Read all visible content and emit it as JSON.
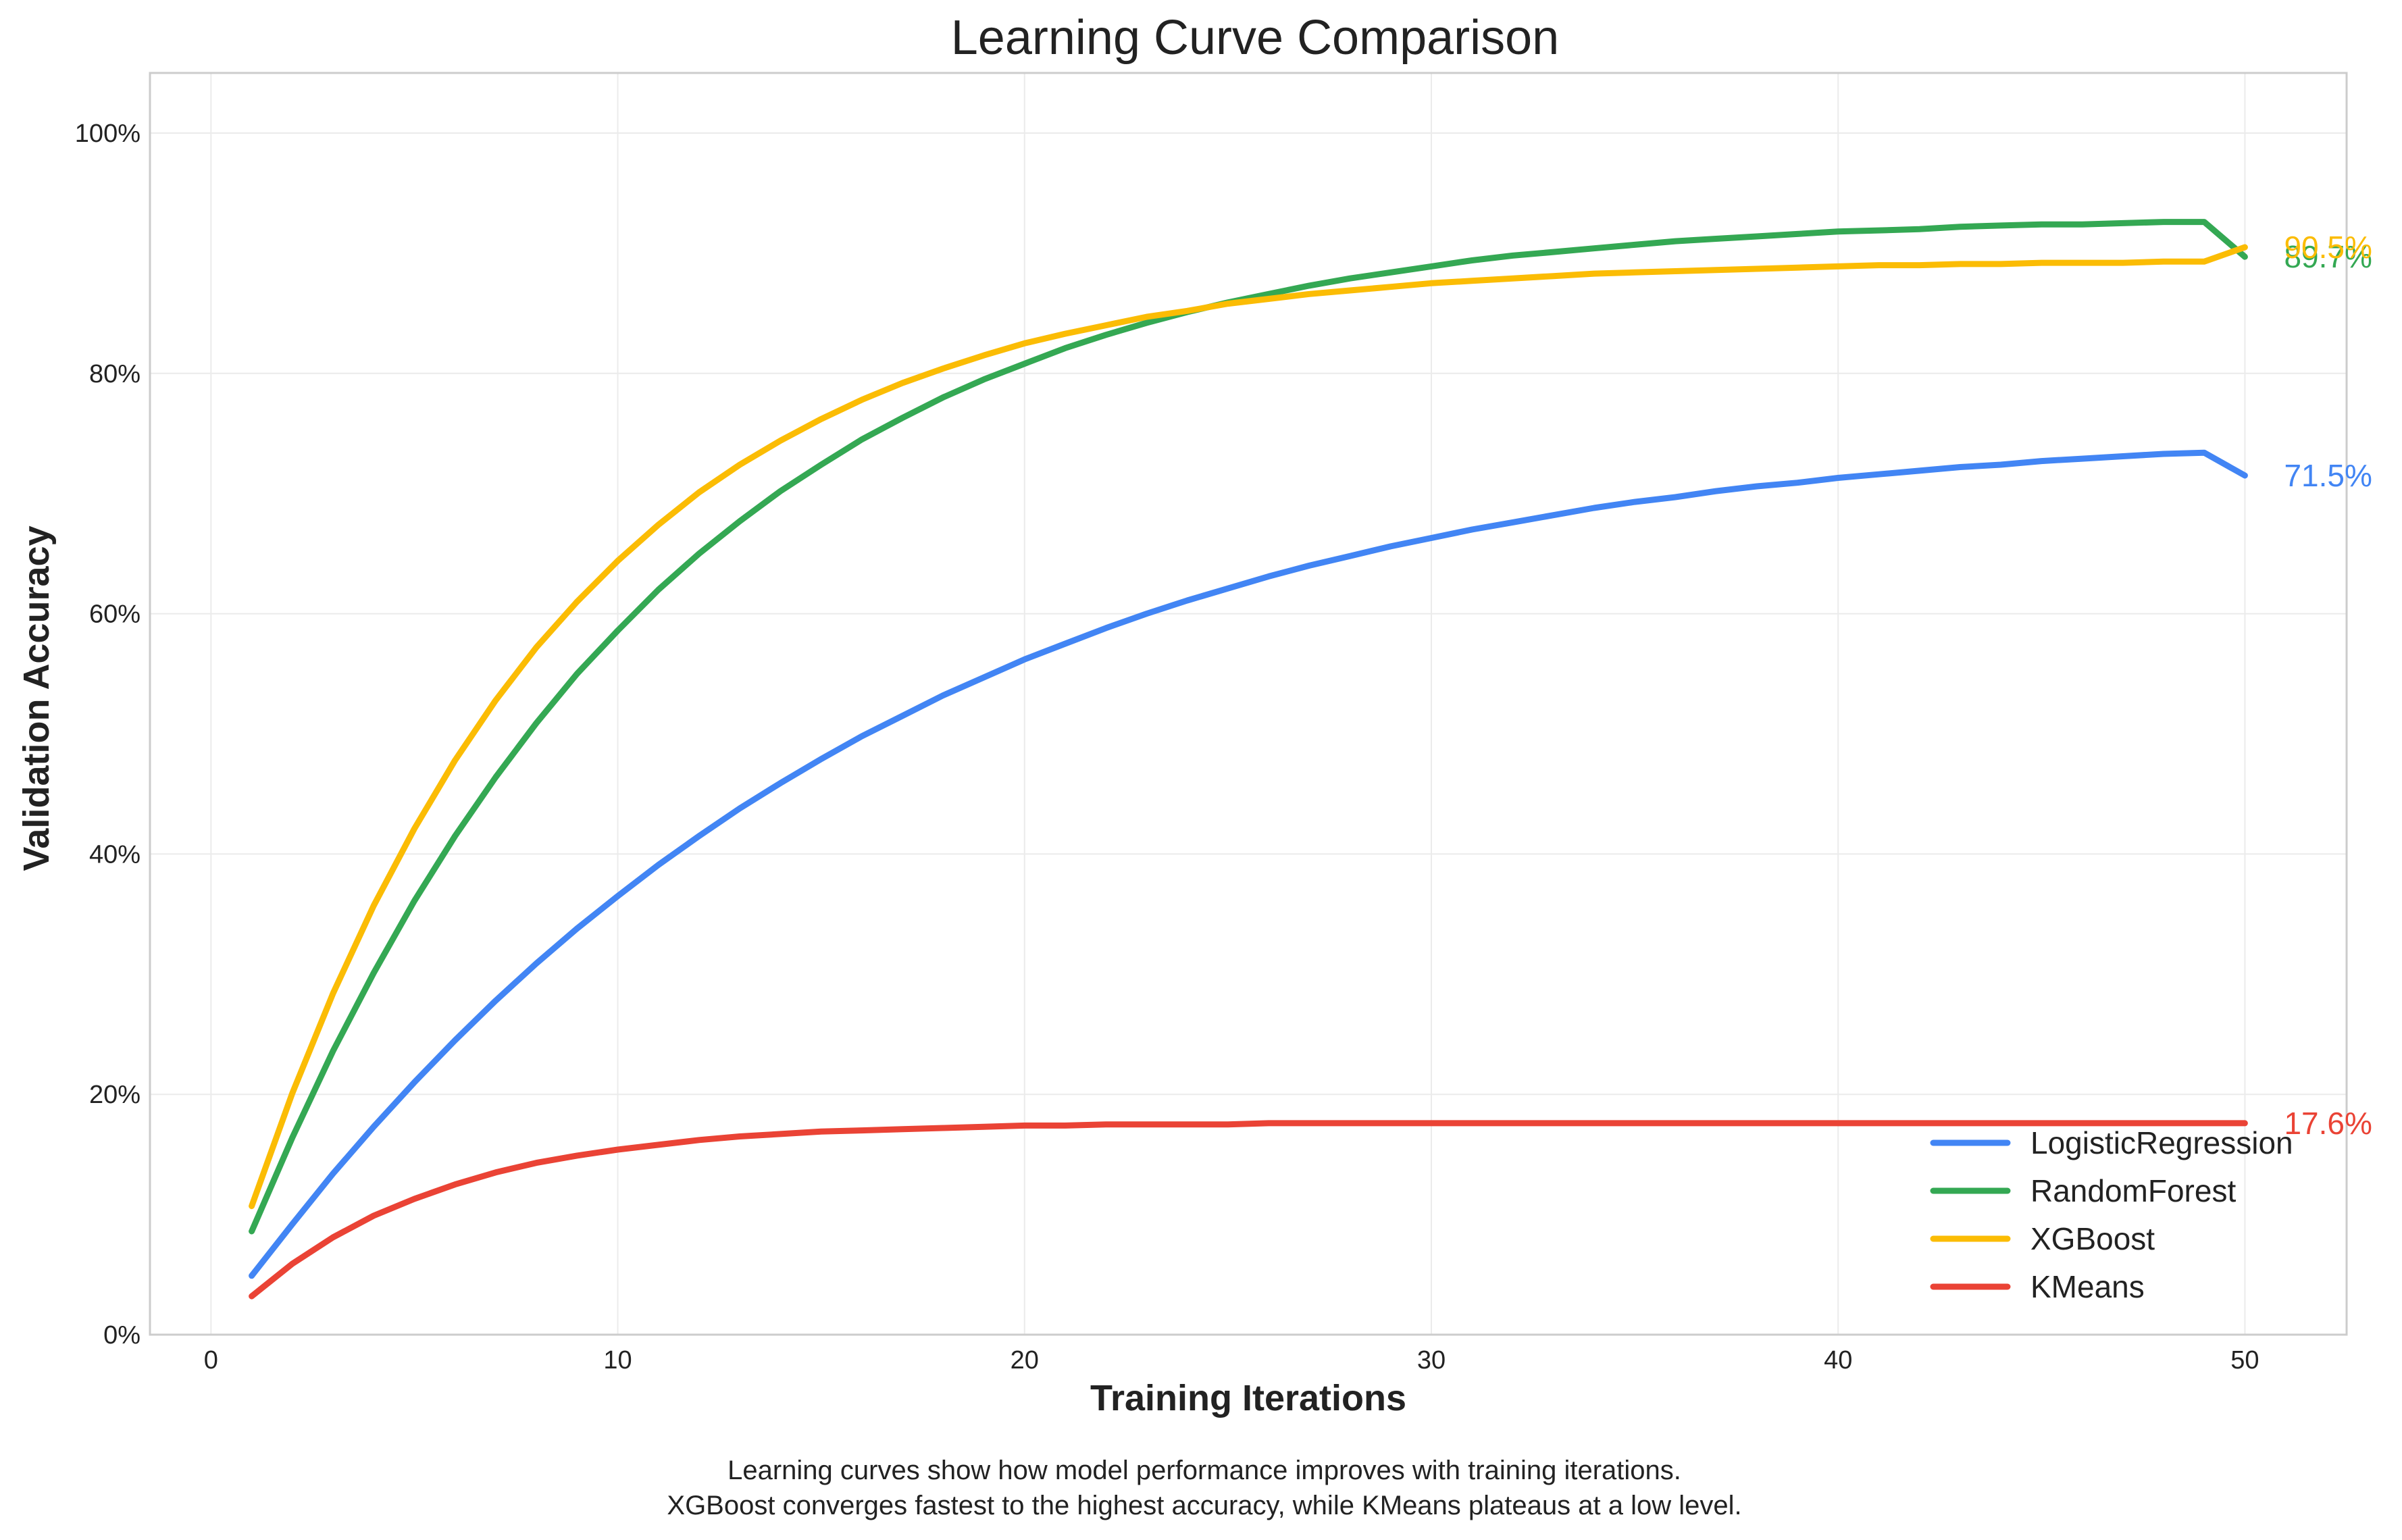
{
  "chart_data": {
    "type": "line",
    "title": "Learning Curve Comparison",
    "xlabel": "Training Iterations",
    "ylabel": "Validation Accuracy",
    "xlim": [
      -1.5,
      52.5
    ],
    "ylim": [
      0,
      105
    ],
    "xticks": [
      0,
      10,
      20,
      30,
      40,
      50
    ],
    "yticks": [
      0,
      20,
      40,
      60,
      80,
      100
    ],
    "yticklabels": [
      "0%",
      "20%",
      "40%",
      "60%",
      "80%",
      "100%"
    ],
    "grid": true,
    "legend_position": "lower-right",
    "x_range": [
      1,
      50
    ],
    "series": [
      {
        "name": "LogisticRegression",
        "color": "#4285f4",
        "end_label": "71.5%",
        "values": [
          4.9,
          9.2,
          13.4,
          17.3,
          21.0,
          24.5,
          27.8,
          30.9,
          33.8,
          36.5,
          39.1,
          41.5,
          43.8,
          45.9,
          47.9,
          49.8,
          51.5,
          53.2,
          54.7,
          56.2,
          57.5,
          58.8,
          60.0,
          61.1,
          62.1,
          63.1,
          64.0,
          64.8,
          65.6,
          66.3,
          67.0,
          67.6,
          68.2,
          68.8,
          69.3,
          69.7,
          70.2,
          70.6,
          70.9,
          71.3,
          71.6,
          71.9,
          72.2,
          72.4,
          72.7,
          72.9,
          73.1,
          73.3,
          73.4,
          71.5
        ]
      },
      {
        "name": "RandomForest",
        "color": "#34a853",
        "end_label": "89.7%",
        "values": [
          8.6,
          16.4,
          23.6,
          30.1,
          36.1,
          41.5,
          46.4,
          50.9,
          55.0,
          58.6,
          62.0,
          65.0,
          67.7,
          70.2,
          72.4,
          74.5,
          76.3,
          78.0,
          79.5,
          80.8,
          82.1,
          83.2,
          84.2,
          85.1,
          85.9,
          86.6,
          87.3,
          87.9,
          88.4,
          88.9,
          89.4,
          89.8,
          90.1,
          90.4,
          90.7,
          91.0,
          91.2,
          91.4,
          91.6,
          91.8,
          91.9,
          92.0,
          92.2,
          92.3,
          92.4,
          92.4,
          92.5,
          92.6,
          92.6,
          89.7
        ]
      },
      {
        "name": "XGBoost",
        "color": "#fbbc04",
        "end_label": "90.5%",
        "values": [
          10.7,
          20.1,
          28.4,
          35.7,
          42.1,
          47.8,
          52.8,
          57.2,
          61.0,
          64.4,
          67.4,
          70.1,
          72.4,
          74.4,
          76.2,
          77.8,
          79.2,
          80.4,
          81.5,
          82.5,
          83.3,
          84.0,
          84.7,
          85.2,
          85.8,
          86.2,
          86.6,
          86.9,
          87.2,
          87.5,
          87.7,
          87.9,
          88.1,
          88.3,
          88.4,
          88.5,
          88.6,
          88.7,
          88.8,
          88.9,
          89.0,
          89.0,
          89.1,
          89.1,
          89.2,
          89.2,
          89.2,
          89.3,
          89.3,
          90.5
        ]
      },
      {
        "name": "KMeans",
        "color": "#ea4335",
        "end_label": "17.6%",
        "values": [
          3.2,
          5.9,
          8.1,
          9.9,
          11.3,
          12.5,
          13.5,
          14.3,
          14.9,
          15.4,
          15.8,
          16.2,
          16.5,
          16.7,
          16.9,
          17.0,
          17.1,
          17.2,
          17.3,
          17.4,
          17.4,
          17.5,
          17.5,
          17.5,
          17.5,
          17.6,
          17.6,
          17.6,
          17.6,
          17.6,
          17.6,
          17.6,
          17.6,
          17.6,
          17.6,
          17.6,
          17.6,
          17.6,
          17.6,
          17.6,
          17.6,
          17.6,
          17.6,
          17.6,
          17.6,
          17.6,
          17.6,
          17.6,
          17.6,
          17.6
        ]
      }
    ],
    "annotations": [
      "Learning curves show how model performance improves with training iterations.",
      "XGBoost converges fastest to the highest accuracy, while KMeans plateaus at a low level."
    ]
  }
}
